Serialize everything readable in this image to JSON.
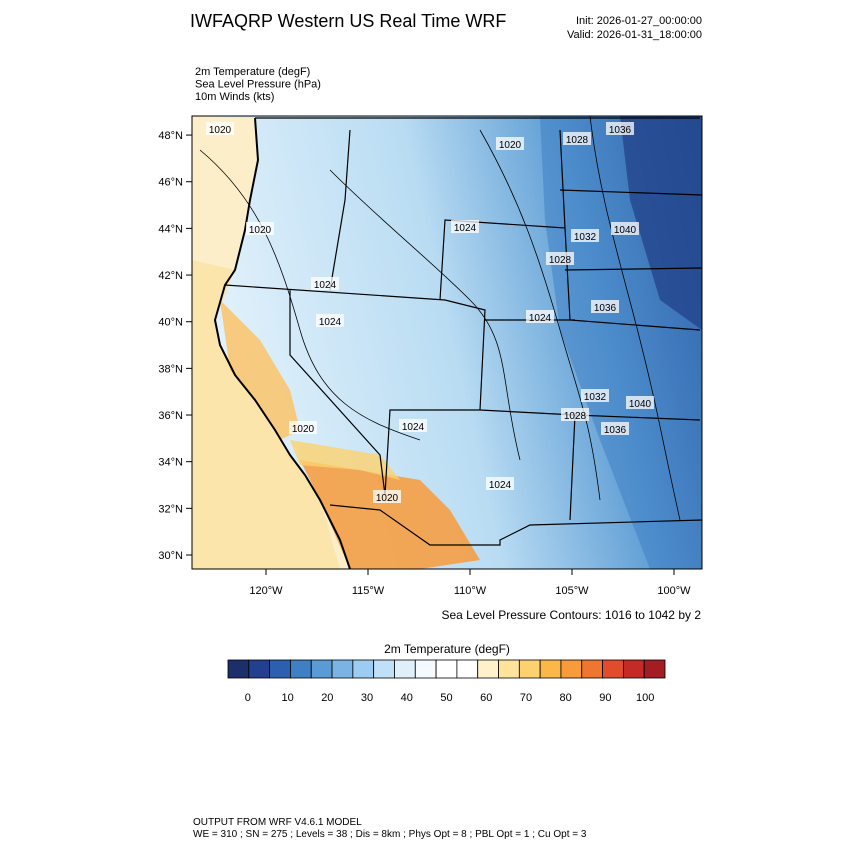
{
  "header": {
    "title": "IWFAQRP Western US Real Time WRF",
    "init": "Init: 2026-01-27_00:00:00",
    "valid": "Valid: 2026-01-31_18:00:00"
  },
  "fields": [
    "2m Temperature   (degF)",
    "Sea Level Pressure   (hPa)",
    "10m Winds   (kts)"
  ],
  "map": {
    "lat_ticks": [
      {
        "value": 48,
        "label": "48°N"
      },
      {
        "value": 46,
        "label": "46°N"
      },
      {
        "value": 44,
        "label": "44°N"
      },
      {
        "value": 42,
        "label": "42°N"
      },
      {
        "value": 40,
        "label": "40°N"
      },
      {
        "value": 38,
        "label": "38°N"
      },
      {
        "value": 36,
        "label": "36°N"
      },
      {
        "value": 34,
        "label": "34°N"
      },
      {
        "value": 32,
        "label": "32°N"
      },
      {
        "value": 30,
        "label": "30°N"
      }
    ],
    "lon_ticks": [
      {
        "value": -120,
        "label": "120°W"
      },
      {
        "value": -115,
        "label": "115°W"
      },
      {
        "value": -110,
        "label": "110°W"
      },
      {
        "value": -105,
        "label": "105°W"
      },
      {
        "value": -100,
        "label": "100°W"
      }
    ],
    "contour_labels": [
      "1020",
      "1020",
      "1028",
      "1036",
      "1020",
      "1024",
      "1032",
      "1040",
      "1028",
      "1024",
      "1024",
      "1024",
      "1036",
      "1032",
      "1040",
      "1028",
      "1036",
      "1020",
      "1024",
      "1024",
      "1020"
    ],
    "contour_caption": "Sea Level Pressure Contours: 1016 to 1042 by 2"
  },
  "colorbar": {
    "title": "2m Temperature  (degF)",
    "bounds": [
      -5,
      105
    ],
    "colors": [
      "#1c2f6b",
      "#233f8f",
      "#2d5fb0",
      "#3f7fc4",
      "#5a9bd6",
      "#79b4e4",
      "#9ccdf0",
      "#bfe0f6",
      "#dff0fb",
      "#f4fafe",
      "#ffffff",
      "#ffffff",
      "#fff1c9",
      "#fee39b",
      "#fdd26e",
      "#fcb749",
      "#f89b3a",
      "#ef7630",
      "#e04c2c",
      "#c42b26",
      "#a31d22"
    ],
    "ticks": [
      0,
      10,
      20,
      30,
      40,
      50,
      60,
      70,
      80,
      90,
      100
    ]
  },
  "footer": [
    "OUTPUT FROM WRF V4.6.1 MODEL",
    "WE = 310 ; SN = 275 ; Levels = 38 ; Dis = 8km ; Phys Opt = 8 ; PBL Opt = 1 ; Cu Opt = 3"
  ]
}
